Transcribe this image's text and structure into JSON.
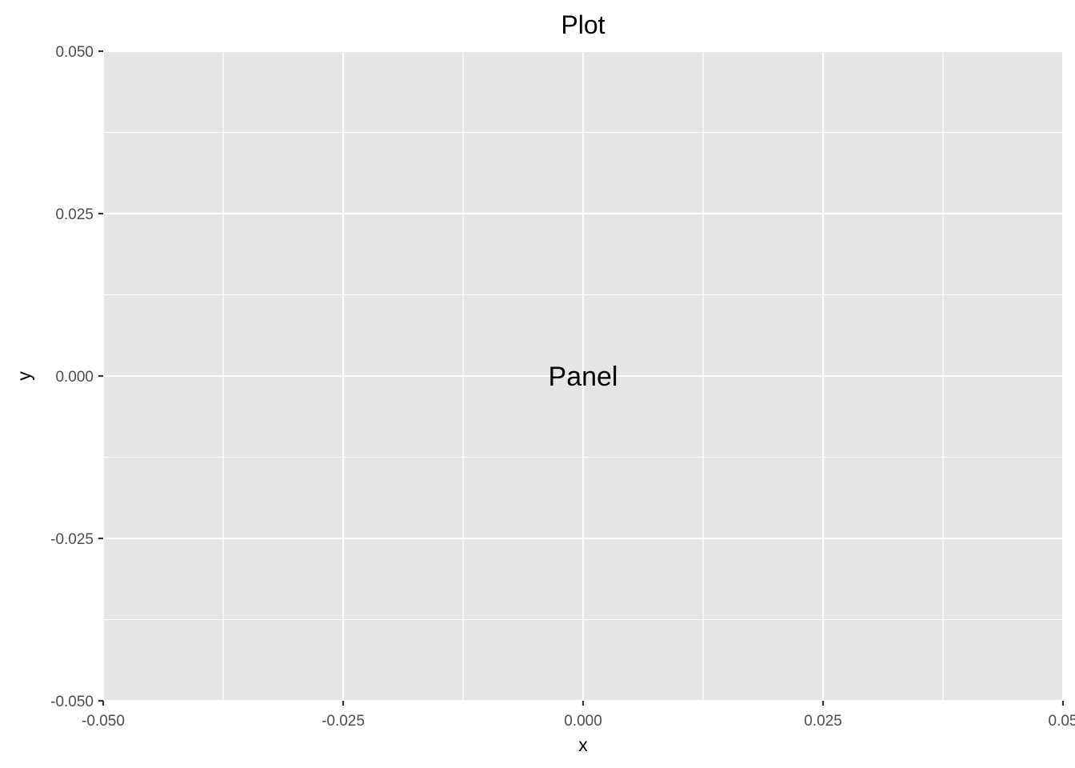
{
  "chart_data": {
    "type": "scatter",
    "title": "Plot",
    "xlabel": "x",
    "ylabel": "y",
    "xlim": [
      -0.05,
      0.05
    ],
    "ylim": [
      -0.05,
      0.05
    ],
    "x_ticks": [
      -0.05,
      -0.025,
      0,
      0.025,
      0.05
    ],
    "y_ticks": [
      -0.05,
      -0.025,
      0,
      0.025,
      0.05
    ],
    "x_tick_labels": [
      "-0.050",
      "-0.025",
      "0.000",
      "0.025",
      "0.05"
    ],
    "y_tick_labels": [
      "-0.050",
      "-0.025",
      "0.000",
      "0.025",
      "0.050"
    ],
    "x_minor_ticks": [
      -0.0375,
      -0.0125,
      0.0125,
      0.0375
    ],
    "y_minor_ticks": [
      -0.0375,
      -0.0125,
      0.0125,
      0.0375
    ],
    "series": [],
    "annotations": [
      {
        "text": "Panel",
        "x": 0,
        "y": 0
      }
    ],
    "grid": true,
    "colors": {
      "panel_background": "#e5e5e5",
      "gridline": "#ffffff",
      "tick_text": "#4d4d4d",
      "tick_mark": "#333333"
    }
  }
}
